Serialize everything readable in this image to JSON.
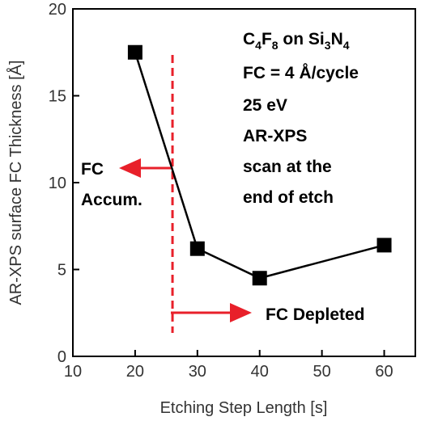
{
  "chart_data": {
    "type": "scatter",
    "title": "",
    "xlabel": "Etching Step Length [s]",
    "ylabel": "AR-XPS surface FC Thickness [Å]",
    "xlim": [
      10,
      65
    ],
    "ylim": [
      0,
      20
    ],
    "xticks": [
      "10",
      "20",
      "30",
      "40",
      "50",
      "60"
    ],
    "yticks": [
      "0",
      "5",
      "10",
      "15",
      "20"
    ],
    "grid": false,
    "series": [
      {
        "x": [
          20,
          30,
          40,
          60
        ],
        "y": [
          17.5,
          6.2,
          4.5,
          6.4
        ],
        "marker": "square",
        "line": true,
        "color": "#000000"
      }
    ],
    "vline": {
      "x": 26,
      "color": "#e8202a",
      "style": "dashed"
    },
    "annotations": {
      "title_line1_parts": [
        "C",
        "4",
        "F",
        "8",
        " on Si",
        "3",
        "N",
        "4"
      ],
      "title_lines": [
        "FC = 4 Å/cycle",
        "25 eV",
        "AR-XPS",
        "scan at the",
        "end of etch"
      ],
      "left_label": [
        "FC",
        "Accum."
      ],
      "right_label": "FC Depleted"
    },
    "arrow_color": "#e8202a"
  }
}
